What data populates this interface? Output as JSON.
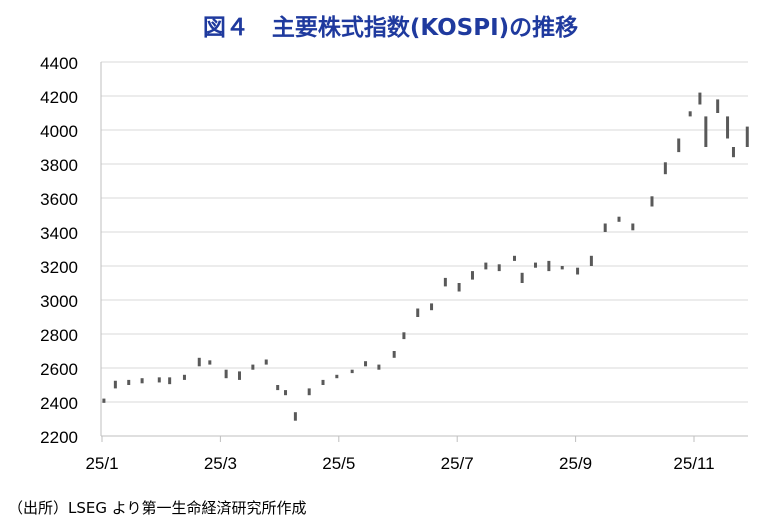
{
  "chart_data": {
    "type": "bar",
    "title": "図４　主要株式指数(KOSPI)の推移",
    "source": "（出所）LSEG より第一生命経済研究所作成",
    "ylim": [
      2200,
      4400
    ],
    "yticks": [
      "2200",
      "2400",
      "2600",
      "2800",
      "3000",
      "3200",
      "3400",
      "3600",
      "3800",
      "4000",
      "4200",
      "4400"
    ],
    "xticks": [
      "25/1",
      "25/3",
      "25/5",
      "25/7",
      "25/9",
      "25/11"
    ],
    "grid": true,
    "bar_color": "#595959",
    "data": [
      [
        "2025-01-02",
        2395,
        2420
      ],
      [
        "2025-01-08",
        2480,
        2525
      ],
      [
        "2025-01-15",
        2500,
        2530
      ],
      [
        "2025-01-22",
        2510,
        2540
      ],
      [
        "2025-01-31",
        2515,
        2545
      ],
      [
        "2025-02-05",
        2505,
        2545
      ],
      [
        "2025-02-12",
        2530,
        2560
      ],
      [
        "2025-02-19",
        2610,
        2660
      ],
      [
        "2025-02-24",
        2620,
        2645
      ],
      [
        "2025-03-04",
        2540,
        2590
      ],
      [
        "2025-03-11",
        2530,
        2580
      ],
      [
        "2025-03-18",
        2590,
        2620
      ],
      [
        "2025-03-25",
        2620,
        2650
      ],
      [
        "2025-03-31",
        2470,
        2500
      ],
      [
        "2025-04-04",
        2440,
        2470
      ],
      [
        "2025-04-09",
        2290,
        2340
      ],
      [
        "2025-04-16",
        2440,
        2480
      ],
      [
        "2025-04-23",
        2500,
        2530
      ],
      [
        "2025-04-30",
        2540,
        2560
      ],
      [
        "2025-05-08",
        2570,
        2590
      ],
      [
        "2025-05-15",
        2610,
        2640
      ],
      [
        "2025-05-22",
        2590,
        2620
      ],
      [
        "2025-05-30",
        2660,
        2700
      ],
      [
        "2025-06-04",
        2770,
        2810
      ],
      [
        "2025-06-11",
        2900,
        2950
      ],
      [
        "2025-06-18",
        2940,
        2980
      ],
      [
        "2025-06-25",
        3080,
        3130
      ],
      [
        "2025-07-02",
        3050,
        3100
      ],
      [
        "2025-07-09",
        3120,
        3170
      ],
      [
        "2025-07-16",
        3180,
        3220
      ],
      [
        "2025-07-23",
        3170,
        3210
      ],
      [
        "2025-07-31",
        3230,
        3260
      ],
      [
        "2025-08-04",
        3100,
        3160
      ],
      [
        "2025-08-11",
        3190,
        3220
      ],
      [
        "2025-08-18",
        3170,
        3230
      ],
      [
        "2025-08-25",
        3180,
        3200
      ],
      [
        "2025-09-02",
        3150,
        3190
      ],
      [
        "2025-09-09",
        3200,
        3260
      ],
      [
        "2025-09-16",
        3400,
        3450
      ],
      [
        "2025-09-23",
        3460,
        3490
      ],
      [
        "2025-09-30",
        3410,
        3450
      ],
      [
        "2025-10-10",
        3550,
        3610
      ],
      [
        "2025-10-17",
        3740,
        3810
      ],
      [
        "2025-10-24",
        3870,
        3950
      ],
      [
        "2025-10-30",
        4080,
        4110
      ],
      [
        "2025-11-04",
        4150,
        4220
      ],
      [
        "2025-11-07",
        3900,
        4080
      ],
      [
        "2025-11-13",
        4100,
        4180
      ],
      [
        "2025-11-18",
        3950,
        4080
      ],
      [
        "2025-11-21",
        3840,
        3900
      ],
      [
        "2025-11-28",
        3900,
        4020
      ]
    ]
  }
}
